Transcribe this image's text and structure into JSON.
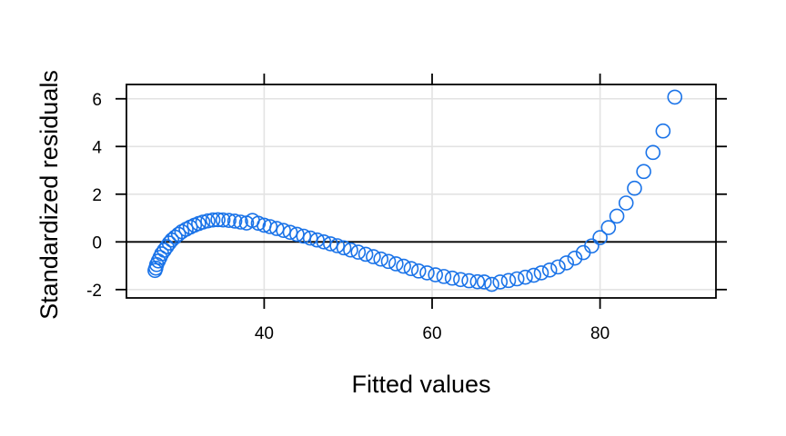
{
  "chart_data": {
    "type": "scatter",
    "title": "",
    "xlabel": "Fitted values",
    "ylabel": "Standardized residuals",
    "xlim": [
      23.6,
      93.8
    ],
    "ylim": [
      -2.35,
      6.6
    ],
    "x_ticks": [
      40,
      60,
      80
    ],
    "y_ticks": [
      -2,
      0,
      2,
      4,
      6
    ],
    "grid": true,
    "reference_line_y": 0,
    "series": [
      {
        "color": "#1a73e8",
        "marker": "open-circle",
        "points": [
          [
            27.0,
            -1.2
          ],
          [
            27.1,
            -1.1
          ],
          [
            27.2,
            -0.95
          ],
          [
            27.4,
            -0.8
          ],
          [
            27.6,
            -0.65
          ],
          [
            27.8,
            -0.5
          ],
          [
            28.1,
            -0.35
          ],
          [
            28.4,
            -0.2
          ],
          [
            28.7,
            -0.05
          ],
          [
            29.0,
            0.08
          ],
          [
            29.4,
            0.2
          ],
          [
            29.8,
            0.32
          ],
          [
            30.2,
            0.43
          ],
          [
            30.7,
            0.53
          ],
          [
            31.2,
            0.62
          ],
          [
            31.7,
            0.7
          ],
          [
            32.2,
            0.77
          ],
          [
            32.7,
            0.83
          ],
          [
            33.3,
            0.88
          ],
          [
            33.9,
            0.92
          ],
          [
            34.5,
            0.93
          ],
          [
            35.1,
            0.92
          ],
          [
            35.8,
            0.9
          ],
          [
            36.5,
            0.87
          ],
          [
            37.2,
            0.83
          ],
          [
            37.9,
            0.79
          ],
          [
            38.6,
            0.9
          ],
          [
            39.3,
            0.78
          ],
          [
            40.0,
            0.7
          ],
          [
            40.7,
            0.64
          ],
          [
            41.5,
            0.56
          ],
          [
            42.3,
            0.48
          ],
          [
            43.1,
            0.4
          ],
          [
            43.9,
            0.32
          ],
          [
            44.7,
            0.24
          ],
          [
            45.5,
            0.16
          ],
          [
            46.3,
            0.08
          ],
          [
            47.1,
            0.0
          ],
          [
            47.9,
            -0.08
          ],
          [
            48.7,
            -0.16
          ],
          [
            49.5,
            -0.25
          ],
          [
            50.3,
            -0.34
          ],
          [
            51.2,
            -0.43
          ],
          [
            52.1,
            -0.52
          ],
          [
            53.0,
            -0.62
          ],
          [
            53.9,
            -0.72
          ],
          [
            54.8,
            -0.82
          ],
          [
            55.7,
            -0.92
          ],
          [
            56.6,
            -1.02
          ],
          [
            57.5,
            -1.12
          ],
          [
            58.4,
            -1.22
          ],
          [
            59.4,
            -1.3
          ],
          [
            60.4,
            -1.38
          ],
          [
            61.4,
            -1.45
          ],
          [
            62.4,
            -1.52
          ],
          [
            63.4,
            -1.58
          ],
          [
            64.4,
            -1.63
          ],
          [
            65.4,
            -1.67
          ],
          [
            66.2,
            -1.68
          ],
          [
            67.1,
            -1.78
          ],
          [
            68.1,
            -1.68
          ],
          [
            69.1,
            -1.62
          ],
          [
            70.1,
            -1.55
          ],
          [
            71.1,
            -1.48
          ],
          [
            72.1,
            -1.4
          ],
          [
            73.0,
            -1.3
          ],
          [
            74.0,
            -1.18
          ],
          [
            75.0,
            -1.05
          ],
          [
            76.0,
            -0.88
          ],
          [
            77.0,
            -0.68
          ],
          [
            78.0,
            -0.45
          ],
          [
            79.0,
            -0.17
          ],
          [
            80.0,
            0.18
          ],
          [
            81.0,
            0.6
          ],
          [
            82.0,
            1.08
          ],
          [
            83.1,
            1.63
          ],
          [
            84.1,
            2.25
          ],
          [
            85.2,
            2.95
          ],
          [
            86.3,
            3.75
          ],
          [
            87.5,
            4.65
          ],
          [
            88.9,
            6.07
          ]
        ]
      }
    ]
  }
}
